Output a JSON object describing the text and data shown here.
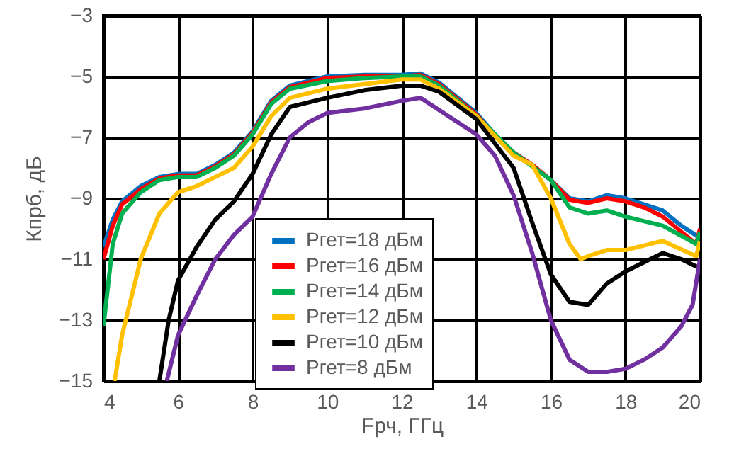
{
  "chart_data": {
    "type": "line",
    "xlabel": "Fрч, ГГц",
    "ylabel": "Кпрб, дБ",
    "xlim": [
      4,
      20
    ],
    "ylim": [
      -15,
      -3
    ],
    "xticks": [
      4,
      6,
      8,
      10,
      12,
      14,
      16,
      18,
      20
    ],
    "yticks": [
      -15,
      -13,
      -11,
      -9,
      -7,
      -5,
      -3
    ],
    "grid": true,
    "legend": "bottom",
    "line_style": "solid",
    "marker": "none",
    "series": [
      {
        "name": "Pгет=18 дБм",
        "color": "#0070c0",
        "x": [
          4,
          4.25,
          4.5,
          5,
          5.5,
          6,
          6.5,
          7,
          7.5,
          8,
          8.5,
          9,
          9.5,
          10,
          11,
          12,
          12.5,
          13,
          13.5,
          14,
          14.5,
          15,
          15.5,
          16,
          16.5,
          17,
          17.5,
          18,
          18.5,
          19,
          19.5,
          20
        ],
        "values": [
          -10.6,
          -9.7,
          -9.1,
          -8.6,
          -8.3,
          -8.2,
          -8.2,
          -7.9,
          -7.5,
          -6.8,
          -5.8,
          -5.3,
          -5.15,
          -5.0,
          -4.95,
          -4.95,
          -4.9,
          -5.2,
          -5.7,
          -6.2,
          -6.9,
          -7.5,
          -7.9,
          -8.4,
          -9.0,
          -9.1,
          -8.9,
          -9.0,
          -9.2,
          -9.4,
          -9.9,
          -10.3
        ]
      },
      {
        "name": "Pгет=16 дБм",
        "color": "#ff0000",
        "x": [
          4,
          4.25,
          4.5,
          5,
          5.5,
          6,
          6.5,
          7,
          7.5,
          8,
          8.5,
          9,
          9.5,
          10,
          11,
          12,
          12.5,
          13,
          13.5,
          14,
          14.5,
          15,
          15.5,
          16,
          16.5,
          17,
          17.5,
          18,
          18.5,
          19,
          19.5,
          19.9,
          20
        ],
        "values": [
          -11.0,
          -9.9,
          -9.2,
          -8.7,
          -8.35,
          -8.25,
          -8.25,
          -7.95,
          -7.55,
          -6.85,
          -5.85,
          -5.35,
          -5.2,
          -5.05,
          -5.0,
          -5.0,
          -4.95,
          -5.25,
          -5.75,
          -6.25,
          -6.95,
          -7.5,
          -7.9,
          -8.4,
          -9.05,
          -9.15,
          -9.0,
          -9.1,
          -9.3,
          -9.6,
          -10.1,
          -10.5,
          -10.0
        ]
      },
      {
        "name": "Pгет=14 дБм",
        "color": "#00b050",
        "x": [
          4,
          4.25,
          4.5,
          5,
          5.5,
          6,
          6.5,
          7,
          7.5,
          8,
          8.5,
          9,
          10,
          11,
          12,
          12.5,
          13,
          14,
          15,
          16,
          16.5,
          17,
          17.5,
          18,
          19,
          19.9,
          20
        ],
        "values": [
          -13.2,
          -10.5,
          -9.5,
          -8.8,
          -8.4,
          -8.3,
          -8.3,
          -8.0,
          -7.6,
          -6.9,
          -5.9,
          -5.4,
          -5.15,
          -5.05,
          -5.0,
          -5.0,
          -5.3,
          -6.3,
          -7.5,
          -8.4,
          -9.3,
          -9.5,
          -9.4,
          -9.6,
          -9.9,
          -10.5,
          -10.1
        ]
      },
      {
        "name": "Pгет=12 дБм",
        "color": "#ffc000",
        "x": [
          4.3,
          4.5,
          5,
          5.5,
          6,
          6.5,
          7,
          7.5,
          8,
          8.5,
          9,
          10,
          11,
          12,
          12.5,
          13,
          14,
          15,
          15.5,
          16,
          16.5,
          16.8,
          17,
          17.5,
          18,
          19,
          19.9,
          20
        ],
        "values": [
          -15,
          -13.5,
          -11.0,
          -9.5,
          -8.8,
          -8.6,
          -8.3,
          -8.0,
          -7.3,
          -6.3,
          -5.7,
          -5.4,
          -5.25,
          -5.1,
          -5.1,
          -5.4,
          -6.3,
          -7.6,
          -7.9,
          -9.0,
          -10.5,
          -11.0,
          -10.9,
          -10.7,
          -10.7,
          -10.4,
          -10.9,
          -10.4
        ]
      },
      {
        "name": "Pгет=10 дБм",
        "color": "#000000",
        "x": [
          5.5,
          5.75,
          6,
          6.5,
          7,
          7.5,
          8,
          8.5,
          9,
          10,
          11,
          12,
          12.5,
          13,
          14,
          15,
          15.5,
          16,
          16.5,
          17,
          17.5,
          18,
          18.5,
          19,
          19.5,
          20
        ],
        "values": [
          -15,
          -13,
          -11.7,
          -10.6,
          -9.7,
          -9.1,
          -8.2,
          -6.9,
          -6.0,
          -5.7,
          -5.45,
          -5.3,
          -5.3,
          -5.5,
          -6.4,
          -8.0,
          -9.8,
          -11.5,
          -12.4,
          -12.5,
          -11.8,
          -11.4,
          -11.1,
          -10.8,
          -11.0,
          -11.3
        ]
      },
      {
        "name": "Pгет=8 дБм",
        "color": "#7030a0",
        "x": [
          5.7,
          6,
          6.5,
          7,
          7.5,
          8,
          8.5,
          9,
          9.5,
          10,
          11,
          12,
          12.5,
          13,
          14,
          14.5,
          15,
          15.5,
          16,
          16.5,
          17,
          17.5,
          18,
          18.5,
          19,
          19.5,
          19.8,
          20
        ],
        "values": [
          -15,
          -13.5,
          -12.2,
          -11.0,
          -10.2,
          -9.6,
          -8.2,
          -7.0,
          -6.5,
          -6.2,
          -6.05,
          -5.8,
          -5.7,
          -6.1,
          -6.9,
          -7.6,
          -8.9,
          -10.8,
          -13.0,
          -14.3,
          -14.7,
          -14.7,
          -14.6,
          -14.3,
          -13.9,
          -13.2,
          -12.5,
          -11.0
        ]
      }
    ]
  }
}
